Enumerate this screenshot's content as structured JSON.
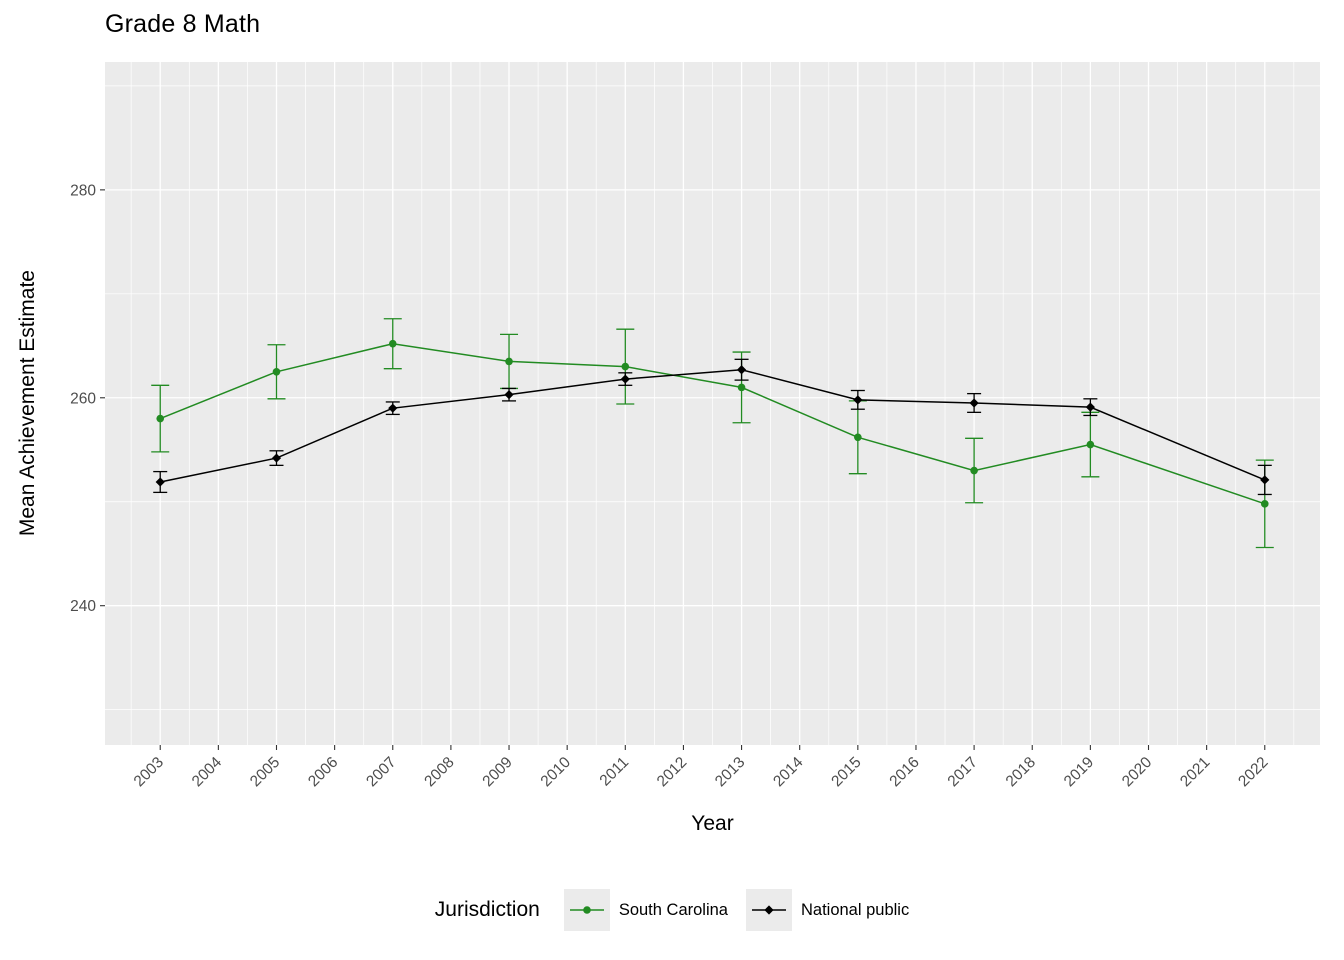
{
  "title": "Grade 8 Math",
  "axes": {
    "x_label": "Year",
    "y_label": "Mean Achievement Estimate"
  },
  "legend": {
    "title": "Jurisdiction",
    "items": [
      {
        "label": "South Carolina",
        "color": "#228B22",
        "marker": "circle"
      },
      {
        "label": "National public",
        "color": "#000000",
        "marker": "diamond"
      }
    ]
  },
  "colors": {
    "panel_bg": "#ebebeb",
    "grid": "#ffffff",
    "tick_text": "#4d4d4d",
    "tick_mark": "#333333"
  },
  "chart_data": {
    "type": "line",
    "title": "Grade 8 Math",
    "xlabel": "Year",
    "ylabel": "Mean Achievement Estimate",
    "legend_position": "bottom",
    "grid": true,
    "xlim": [
      2002.05,
      2022.95
    ],
    "ylim": [
      226.6,
      292.3
    ],
    "x_ticks": [
      2003,
      2004,
      2005,
      2006,
      2007,
      2008,
      2009,
      2010,
      2011,
      2012,
      2013,
      2014,
      2015,
      2016,
      2017,
      2018,
      2019,
      2020,
      2021,
      2022
    ],
    "y_ticks": [
      240,
      260,
      280
    ],
    "y_minor_ticks": [
      230,
      250,
      270,
      290
    ],
    "x": [
      2003,
      2005,
      2007,
      2009,
      2011,
      2013,
      2015,
      2017,
      2019,
      2022
    ],
    "series": [
      {
        "name": "South Carolina",
        "color": "#228B22",
        "marker": "circle",
        "values": [
          258.0,
          262.5,
          265.2,
          263.5,
          263.0,
          261.0,
          256.2,
          253.0,
          255.5,
          249.8
        ],
        "error": [
          3.2,
          2.6,
          2.4,
          2.6,
          3.6,
          3.4,
          3.5,
          3.1,
          3.1,
          4.2
        ]
      },
      {
        "name": "National public",
        "color": "#000000",
        "marker": "diamond",
        "values": [
          251.9,
          254.2,
          259.0,
          260.3,
          261.8,
          262.7,
          259.8,
          259.5,
          259.1,
          252.1
        ],
        "error": [
          1.0,
          0.7,
          0.6,
          0.6,
          0.6,
          1.0,
          0.9,
          0.9,
          0.8,
          1.4
        ]
      }
    ]
  }
}
